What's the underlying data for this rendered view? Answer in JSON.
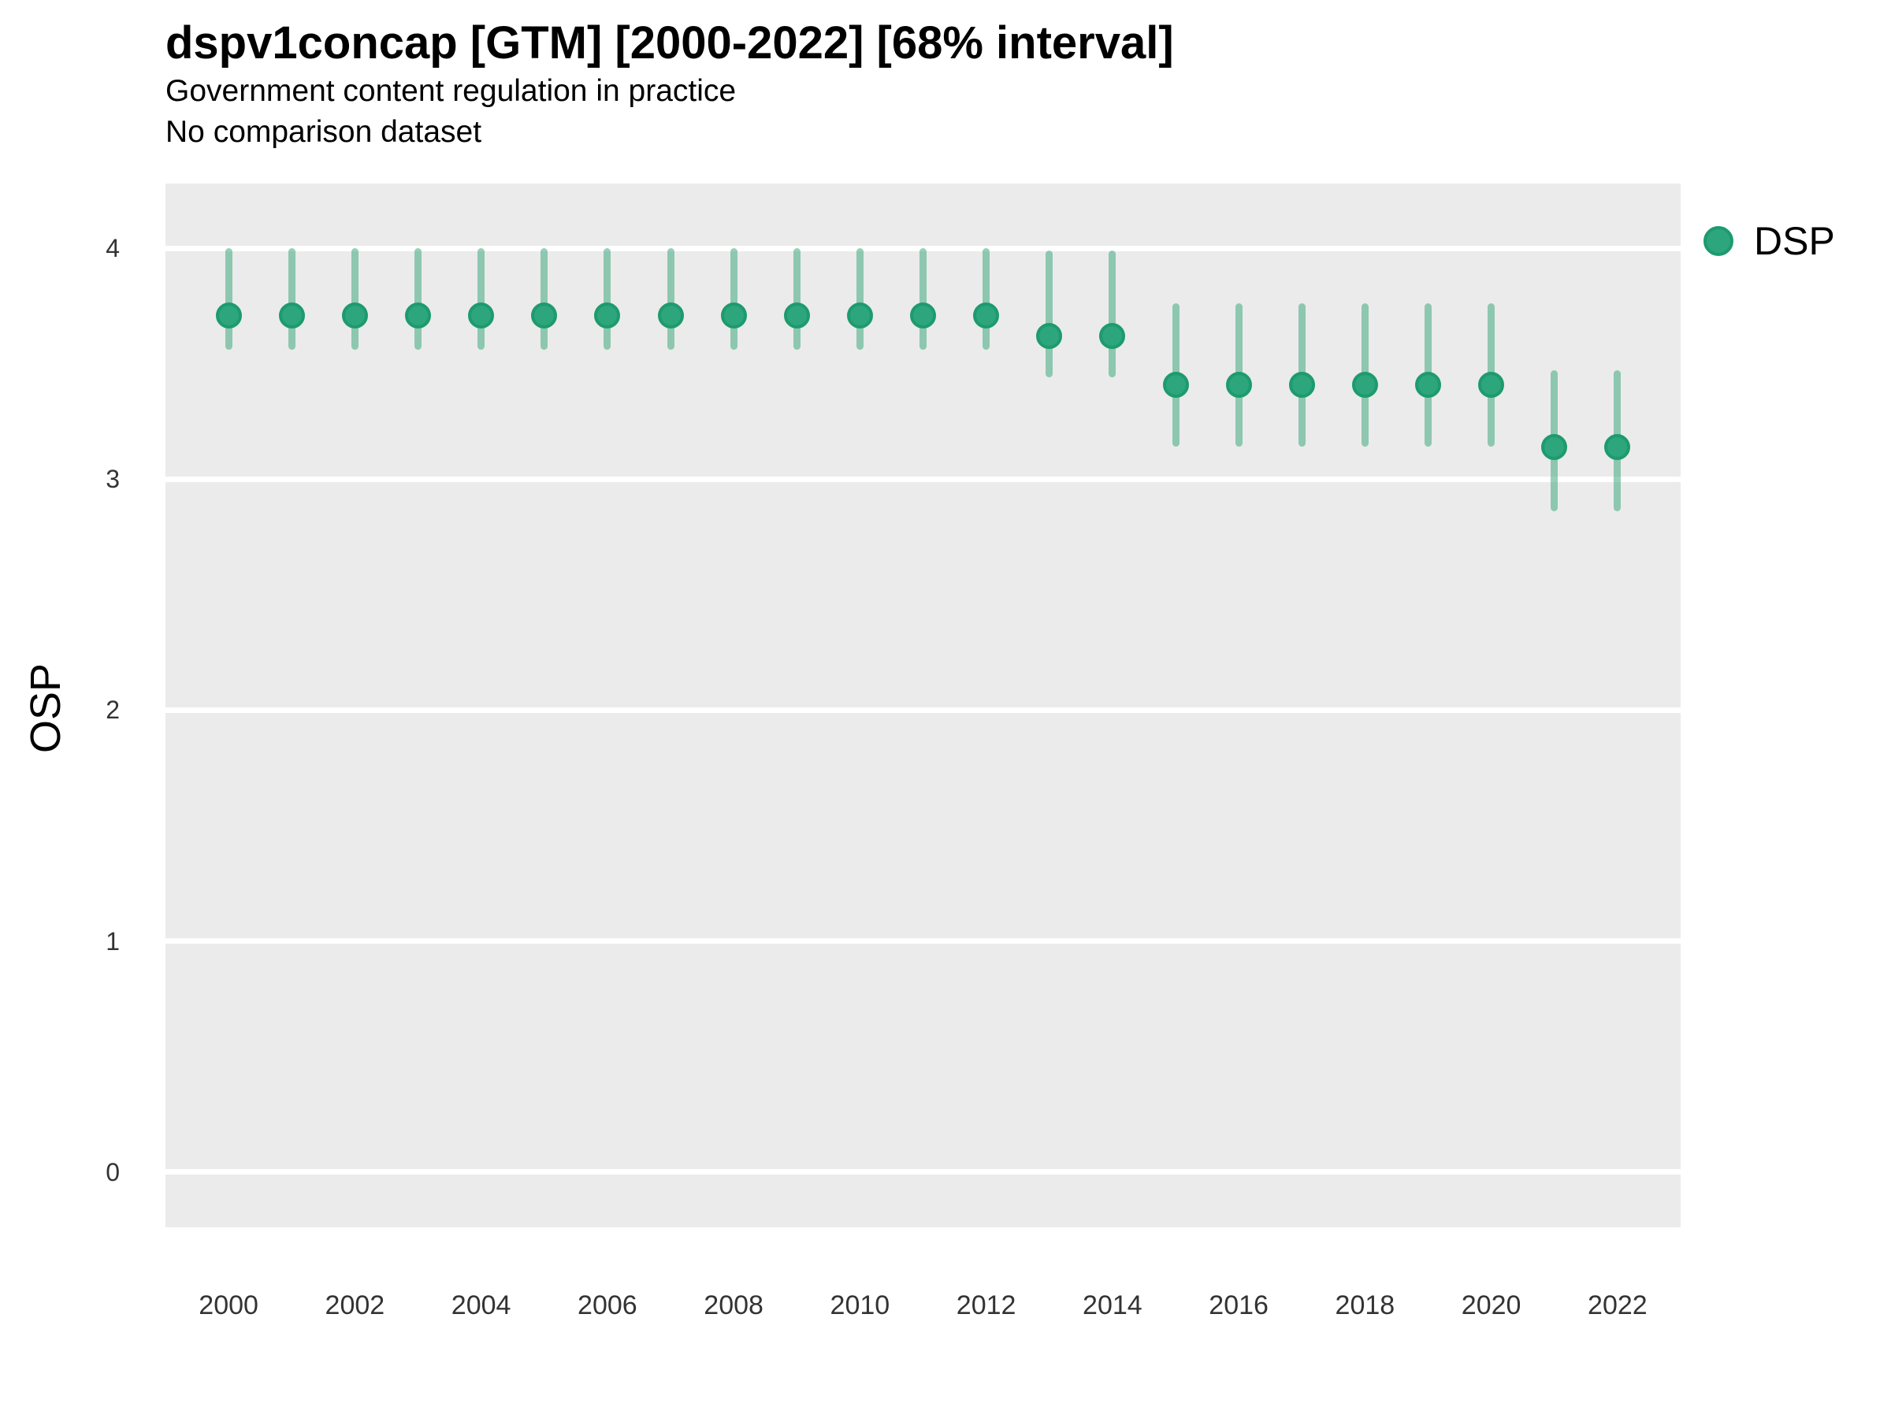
{
  "header": {
    "title": "dspv1concap [GTM] [2000-2022] [68% interval]",
    "subtitle": "Government content regulation in practice",
    "comparison_note": "No comparison dataset"
  },
  "legend": {
    "position": "right",
    "items": [
      {
        "label": "DSP",
        "color": "#2DA57D"
      }
    ]
  },
  "colors": {
    "point_fill": "#2DA57D",
    "point_ring": "#1D9B6E",
    "interval_bar": "rgba(64,170,126,0.55)",
    "panel_background": "#EBEBEB",
    "gridline": "#FFFFFF",
    "tick_text": "#333333",
    "title_text": "#000000"
  },
  "chart_data": {
    "type": "scatter",
    "title": "dspv1concap [GTM] [2000-2022] [68% interval]",
    "subtitle": "Government content regulation in practice",
    "note": "No comparison dataset",
    "xlabel": "",
    "ylabel": "OSP",
    "interval": "68%",
    "grid": "major-horizontal-only",
    "legend_position": "right",
    "xlim": [
      1999,
      2023
    ],
    "ylim": [
      -0.24,
      4.28
    ],
    "xticks": [
      2000,
      2002,
      2004,
      2006,
      2008,
      2010,
      2012,
      2014,
      2016,
      2018,
      2020,
      2022
    ],
    "yticks": [
      0,
      1,
      2,
      3,
      4
    ],
    "series": [
      {
        "name": "DSP",
        "x": [
          2000,
          2001,
          2002,
          2003,
          2004,
          2005,
          2006,
          2007,
          2008,
          2009,
          2010,
          2011,
          2012,
          2013,
          2014,
          2015,
          2016,
          2017,
          2018,
          2019,
          2020,
          2021,
          2022
        ],
        "y": [
          3.71,
          3.71,
          3.71,
          3.71,
          3.71,
          3.71,
          3.71,
          3.71,
          3.71,
          3.71,
          3.71,
          3.71,
          3.71,
          3.62,
          3.62,
          3.41,
          3.41,
          3.41,
          3.41,
          3.41,
          3.41,
          3.14,
          3.14
        ],
        "lo": [
          3.56,
          3.56,
          3.56,
          3.56,
          3.56,
          3.56,
          3.56,
          3.56,
          3.56,
          3.56,
          3.56,
          3.56,
          3.56,
          3.44,
          3.44,
          3.14,
          3.14,
          3.14,
          3.14,
          3.14,
          3.14,
          2.86,
          2.86
        ],
        "hi": [
          4.0,
          4.0,
          4.0,
          4.0,
          4.0,
          4.0,
          4.0,
          4.0,
          4.0,
          4.0,
          4.0,
          4.0,
          4.0,
          3.99,
          3.99,
          3.76,
          3.76,
          3.76,
          3.76,
          3.76,
          3.76,
          3.47,
          3.47
        ]
      }
    ]
  }
}
